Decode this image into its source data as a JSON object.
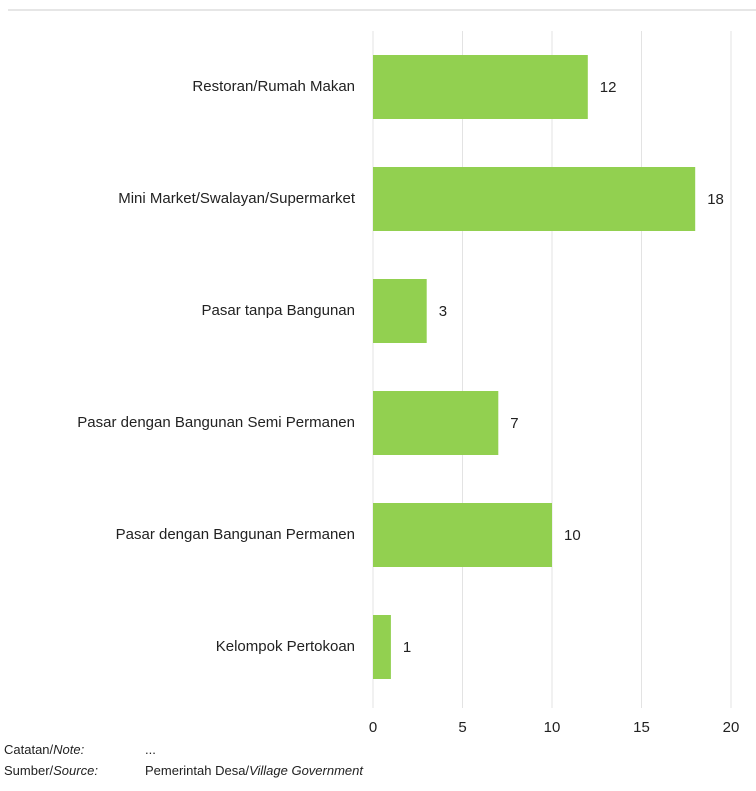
{
  "chart_data": {
    "type": "bar",
    "orientation": "horizontal",
    "categories": [
      "Restoran/Rumah Makan",
      "Mini Market/Swalayan/Supermarket",
      "Pasar tanpa Bangunan",
      "Pasar dengan Bangunan Semi Permanen",
      "Pasar dengan Bangunan Permanen",
      "Kelompok Pertokoan"
    ],
    "values": [
      12,
      18,
      3,
      7,
      10,
      1
    ],
    "color": "#92d050",
    "xlim": [
      0,
      20
    ],
    "xticks": [
      0,
      5,
      10,
      15,
      20
    ],
    "grid": true
  },
  "note": {
    "label": "Catatan/",
    "label_en": "Note:",
    "text": "..."
  },
  "source": {
    "label": "Sumber/",
    "label_en": "Source:",
    "text": "Pemerintah Desa/",
    "text_en": "Village Government"
  }
}
